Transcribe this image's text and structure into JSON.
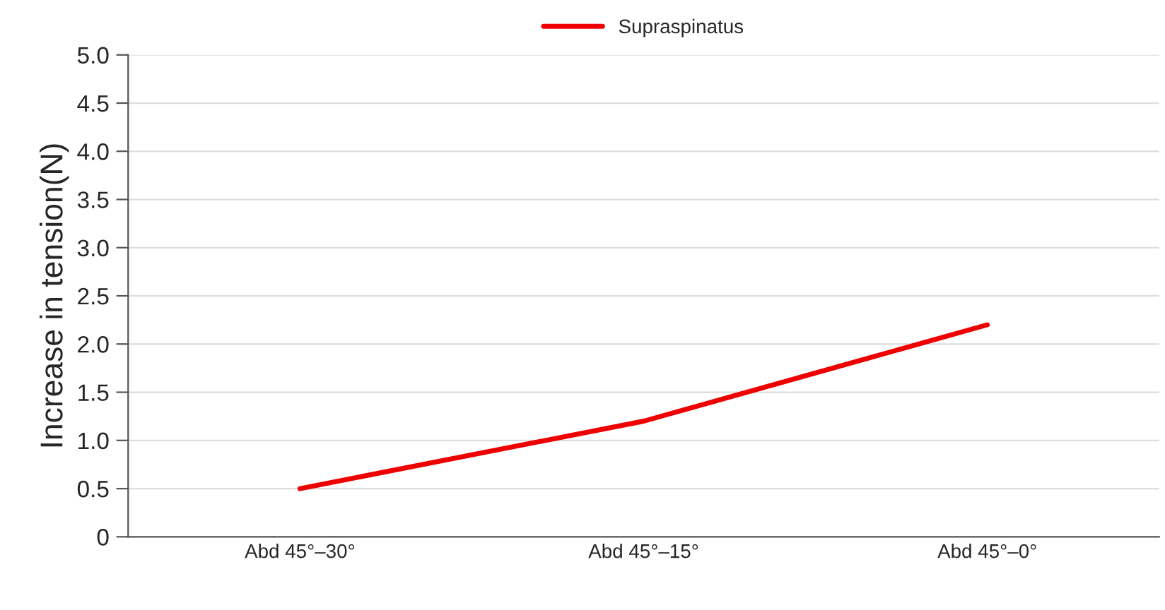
{
  "chart_data": {
    "type": "line",
    "ylabel": "Increase in tension(N)",
    "categories": [
      "Abd 45°–30°",
      "Abd 45°–15°",
      "Abd 45°–0°"
    ],
    "series": [
      {
        "name": "Supraspinatus",
        "color": "#ee0000",
        "values": [
          0.5,
          1.2,
          2.2
        ]
      }
    ],
    "ylim": [
      0,
      5.0
    ],
    "yticks": [
      0,
      {
        "value": 0.5,
        "label": "0.5"
      },
      {
        "value": 1.0,
        "label": "1.0"
      },
      {
        "value": 1.5,
        "label": "1.5"
      },
      {
        "value": 2.0,
        "label": "2.0"
      },
      {
        "value": 2.5,
        "label": "2.5"
      },
      {
        "value": 3.0,
        "label": "3.0"
      },
      {
        "value": 3.5,
        "label": "3.5"
      },
      {
        "value": 4.0,
        "label": "4.0"
      },
      {
        "value": 4.5,
        "label": "4.5"
      },
      {
        "value": 5.0,
        "label": "5.0"
      }
    ],
    "grid": "y",
    "legend": "top",
    "marker": "none",
    "line_style": "solid"
  }
}
